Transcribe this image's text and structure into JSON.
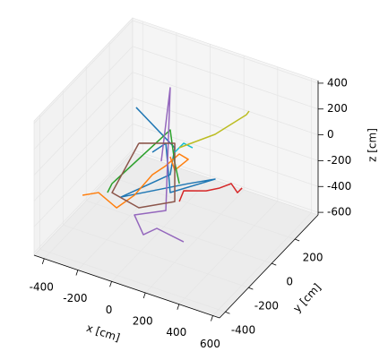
{
  "chart_data": {
    "type": "line3d",
    "xlabel": "x [cm]",
    "ylabel": "y [cm]",
    "zlabel": "z [cm]",
    "xlim": [
      -460,
      640
    ],
    "ylim": [
      -450,
      400
    ],
    "zlim": [
      -620,
      420
    ],
    "xticks": [
      -400,
      -200,
      0,
      200,
      400,
      600
    ],
    "yticks": [
      -400,
      -200,
      0,
      200
    ],
    "zticks": [
      -600,
      -400,
      -200,
      0,
      200,
      400
    ],
    "grid": true,
    "series": [
      {
        "color": "#1f77b4",
        "x": [
          -164,
          65,
          38,
          -254,
          145,
          304,
          38,
          12,
          -68
        ],
        "y": [
          0,
          0,
          0,
          0,
          0,
          0,
          0,
          0,
          0
        ],
        "z": [
          233,
          21,
          -198,
          -501,
          -221,
          -116,
          -337,
          33,
          -72
        ]
      },
      {
        "color": "#ff7f0e",
        "x": [
          -482,
          -387,
          -280,
          -174,
          -68,
          12,
          92,
          145,
          65,
          38
        ],
        "y": [
          0,
          0,
          0,
          0,
          0,
          0,
          0,
          0,
          0,
          0
        ],
        "z": [
          -587,
          -525,
          -596,
          -451,
          -246,
          -141,
          -15,
          -33,
          -152,
          -60
        ]
      },
      {
        "color": "#2ca02c",
        "x": [
          -334,
          -307,
          38,
          65,
          92
        ],
        "y": [
          0,
          0,
          0,
          0,
          0
        ],
        "z": [
          -501,
          -420,
          148,
          -96,
          -244
        ]
      },
      {
        "color": "#d62728",
        "x": [
          92,
          118,
          251,
          331,
          400,
          437,
          464
        ],
        "y": [
          0,
          0,
          0,
          0,
          0,
          0,
          0
        ],
        "z": [
          -383,
          -288,
          -230,
          -173,
          -108,
          -162,
          -114
        ]
      },
      {
        "color": "#9467bd",
        "x": [
          324,
          165,
          85,
          32,
          12,
          38,
          -15
        ],
        "y": [
          -300,
          -300,
          -300,
          -300,
          0,
          0,
          0
        ],
        "z": [
          -311,
          -277,
          -361,
          -232,
          -488,
          474,
          -118
        ]
      },
      {
        "color": "#8c564b",
        "x": [
          -148,
          -307,
          -148,
          65,
          65,
          -148
        ],
        "y": [
          0,
          0,
          0,
          0,
          0,
          0
        ],
        "z": [
          -37,
          -490,
          -537,
          -395,
          56,
          -37
        ]
      },
      {
        "color": "#17becf",
        "x": [
          65,
          118,
          171
        ],
        "y": [
          0,
          0,
          0
        ],
        "z": [
          -13,
          80,
          68
        ]
      },
      {
        "color": "#bcbd22",
        "x": [
          91,
          304,
          490,
          506
        ],
        "y": [
          0,
          0,
          0,
          0
        ],
        "z": [
          33,
          231,
          465,
          500
        ]
      }
    ]
  }
}
